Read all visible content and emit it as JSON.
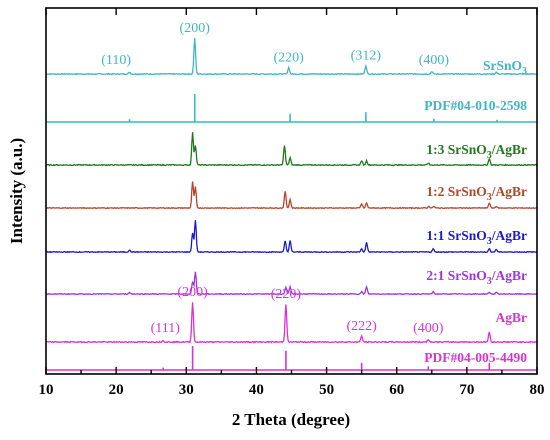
{
  "chart_data": {
    "type": "line",
    "title": "",
    "xlabel": "2 Theta (degree)",
    "ylabel": "Intensity (a.u.)",
    "xlim": [
      10,
      80
    ],
    "x_ticks": [
      "10",
      "20",
      "30",
      "40",
      "50",
      "60",
      "70",
      "80"
    ],
    "y_ticks": false,
    "grid": false,
    "legend": "labels-at-right-of-each-pattern",
    "series": [
      {
        "name": "SrSnO3",
        "label_main": "SrSnO",
        "label_sub": "3",
        "label_prefix": "",
        "label_suffix": "",
        "kind": "pattern",
        "color": "#3fb6c4",
        "peaks": [
          {
            "x": 21.9,
            "h": 0.05
          },
          {
            "x": 31.2,
            "h": 1.0
          },
          {
            "x": 44.6,
            "h": 0.18
          },
          {
            "x": 55.6,
            "h": 0.23
          },
          {
            "x": 65.0,
            "h": 0.07
          },
          {
            "x": 74.2,
            "h": 0.05
          }
        ],
        "peak_labels": [
          {
            "x": 20.0,
            "text": "(110)"
          },
          {
            "x": 31.2,
            "text": "(200)"
          },
          {
            "x": 44.6,
            "text": "(220)"
          },
          {
            "x": 55.6,
            "text": "(312)"
          },
          {
            "x": 65.3,
            "text": "(400)"
          }
        ]
      },
      {
        "name": "PDF#04-010-2598",
        "label_main": "PDF#04-010-2598",
        "label_sub": "",
        "label_prefix": "",
        "label_suffix": "",
        "kind": "reference",
        "color": "#3fb6c4",
        "sticks": [
          {
            "x": 21.9,
            "h": 0.1
          },
          {
            "x": 31.2,
            "h": 1.0
          },
          {
            "x": 44.8,
            "h": 0.3
          },
          {
            "x": 55.6,
            "h": 0.35
          },
          {
            "x": 65.3,
            "h": 0.12
          },
          {
            "x": 74.3,
            "h": 0.08
          }
        ]
      },
      {
        "name": "1:3 SrSnO3/AgBr",
        "label_main": "SrSnO",
        "label_sub": "3",
        "label_prefix": "1:3 ",
        "label_suffix": "/AgBr",
        "kind": "pattern",
        "color": "#1f7a1f",
        "peaks": [
          {
            "x": 30.9,
            "h": 0.9
          },
          {
            "x": 31.3,
            "h": 0.55
          },
          {
            "x": 44.0,
            "h": 0.55
          },
          {
            "x": 44.8,
            "h": 0.2
          },
          {
            "x": 55.0,
            "h": 0.12
          },
          {
            "x": 55.7,
            "h": 0.12
          },
          {
            "x": 64.5,
            "h": 0.05
          },
          {
            "x": 73.2,
            "h": 0.18
          }
        ]
      },
      {
        "name": "1:2 SrSnO3/AgBr",
        "label_main": "SrSnO",
        "label_sub": "3",
        "label_prefix": "1:2 ",
        "label_suffix": "/AgBr",
        "kind": "pattern",
        "color": "#b5452a",
        "peaks": [
          {
            "x": 30.9,
            "h": 0.95
          },
          {
            "x": 31.3,
            "h": 0.75
          },
          {
            "x": 44.1,
            "h": 0.6
          },
          {
            "x": 44.8,
            "h": 0.3
          },
          {
            "x": 55.0,
            "h": 0.15
          },
          {
            "x": 55.7,
            "h": 0.18
          },
          {
            "x": 64.6,
            "h": 0.06
          },
          {
            "x": 65.3,
            "h": 0.06
          },
          {
            "x": 73.2,
            "h": 0.18
          },
          {
            "x": 74.2,
            "h": 0.06
          }
        ]
      },
      {
        "name": "1:1 SrSnO3/AgBr",
        "label_main": "SrSnO",
        "label_sub": "3",
        "label_prefix": "1:1 ",
        "label_suffix": "/AgBr",
        "kind": "pattern",
        "color": "#1a1ac8",
        "peaks": [
          {
            "x": 21.9,
            "h": 0.06
          },
          {
            "x": 30.9,
            "h": 0.6
          },
          {
            "x": 31.3,
            "h": 1.0
          },
          {
            "x": 44.1,
            "h": 0.35
          },
          {
            "x": 44.8,
            "h": 0.35
          },
          {
            "x": 55.0,
            "h": 0.1
          },
          {
            "x": 55.7,
            "h": 0.3
          },
          {
            "x": 65.2,
            "h": 0.1
          },
          {
            "x": 73.2,
            "h": 0.1
          },
          {
            "x": 74.2,
            "h": 0.08
          }
        ]
      },
      {
        "name": "2:1 SrSnO3/AgBr",
        "label_main": "SrSnO",
        "label_sub": "3",
        "label_prefix": "2:1 ",
        "label_suffix": "/AgBr",
        "kind": "pattern",
        "color": "#a035e0",
        "peaks": [
          {
            "x": 21.9,
            "h": 0.05
          },
          {
            "x": 30.9,
            "h": 0.45
          },
          {
            "x": 31.3,
            "h": 0.8
          },
          {
            "x": 44.2,
            "h": 0.25
          },
          {
            "x": 44.8,
            "h": 0.25
          },
          {
            "x": 55.0,
            "h": 0.08
          },
          {
            "x": 55.7,
            "h": 0.25
          },
          {
            "x": 65.2,
            "h": 0.08
          },
          {
            "x": 73.2,
            "h": 0.06
          },
          {
            "x": 74.2,
            "h": 0.06
          }
        ]
      },
      {
        "name": "AgBr",
        "label_main": "AgBr",
        "label_sub": "",
        "label_prefix": "",
        "label_suffix": "",
        "kind": "pattern",
        "color": "#d633d6",
        "peaks": [
          {
            "x": 26.7,
            "h": 0.04
          },
          {
            "x": 30.9,
            "h": 1.0
          },
          {
            "x": 44.2,
            "h": 0.95
          },
          {
            "x": 55.0,
            "h": 0.15
          },
          {
            "x": 64.5,
            "h": 0.06
          },
          {
            "x": 73.2,
            "h": 0.25
          }
        ],
        "peak_labels": [
          {
            "x": 27.0,
            "text": "(111)"
          },
          {
            "x": 30.9,
            "text": "(200)"
          },
          {
            "x": 44.2,
            "text": "(220)"
          },
          {
            "x": 55.0,
            "text": "(222)"
          },
          {
            "x": 64.5,
            "text": "(400)"
          }
        ]
      },
      {
        "name": "PDF#04-005-4490",
        "label_main": "PDF#04-005-4490",
        "label_sub": "",
        "label_prefix": "",
        "label_suffix": "",
        "kind": "reference",
        "color": "#d633d6",
        "sticks": [
          {
            "x": 26.7,
            "h": 0.1
          },
          {
            "x": 30.9,
            "h": 1.0
          },
          {
            "x": 44.2,
            "h": 0.8
          },
          {
            "x": 55.0,
            "h": 0.3
          },
          {
            "x": 64.5,
            "h": 0.15
          },
          {
            "x": 73.2,
            "h": 0.3
          }
        ]
      }
    ]
  }
}
